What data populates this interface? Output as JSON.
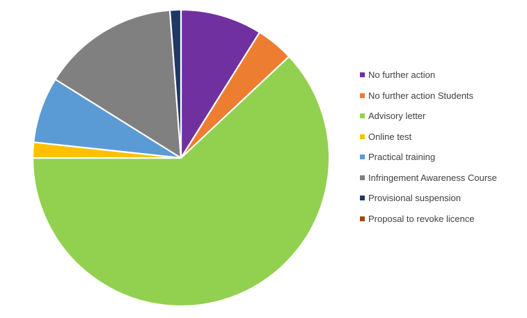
{
  "chart_data": {
    "type": "pie",
    "title": "",
    "start_angle_deg": 0,
    "direction": "clockwise",
    "legend_position": "right",
    "slices": [
      {
        "label": "No further action",
        "value": 8.9,
        "color": "#7030A0"
      },
      {
        "label": "No further action Students",
        "value": 4.1,
        "color": "#ED7D31"
      },
      {
        "label": "Advisory letter",
        "value": 62.0,
        "color": "#92D050"
      },
      {
        "label": "Online test",
        "value": 1.7,
        "color": "#FFC000"
      },
      {
        "label": "Practical training",
        "value": 7.2,
        "color": "#5B9BD5"
      },
      {
        "label": "Infringement Awareness Course",
        "value": 14.9,
        "color": "#808080"
      },
      {
        "label": "Provisional suspension",
        "value": 1.2,
        "color": "#1F3864"
      },
      {
        "label": "Proposal to revoke licence",
        "value": 0.0,
        "color": "#9E480E"
      }
    ]
  }
}
